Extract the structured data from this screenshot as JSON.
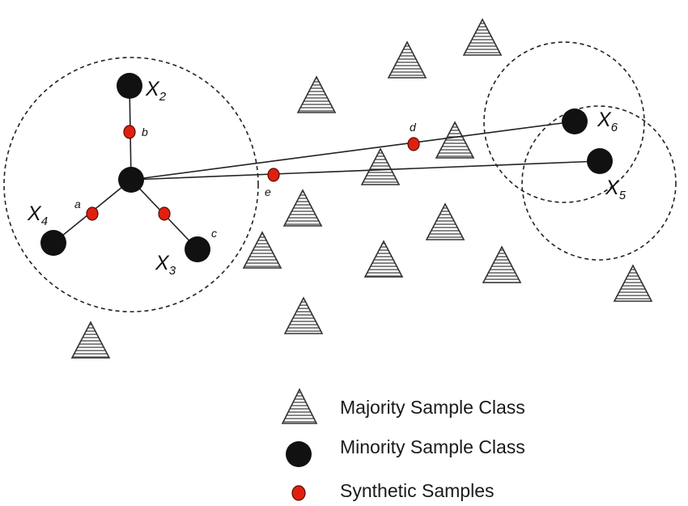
{
  "colors": {
    "minority": "#111111",
    "synthetic": "#e0200f",
    "synthetic_stroke": "#5a0a05",
    "triangle_stroke": "#333333",
    "triangle_hatch": "#555555",
    "line": "#222222",
    "circle_dash": "#222222"
  },
  "icons": {
    "majority": "hatched-triangle",
    "minority": "black-filled-circle",
    "synthetic": "red-filled-circle"
  },
  "minority_labels": [
    {
      "id": "x2",
      "base": "X",
      "sub": "2"
    },
    {
      "id": "x3",
      "base": "X",
      "sub": "3"
    },
    {
      "id": "x4",
      "base": "X",
      "sub": "4"
    },
    {
      "id": "x5",
      "base": "X",
      "sub": "5"
    },
    {
      "id": "x6",
      "base": "X",
      "sub": "6"
    }
  ],
  "synthetic_labels": [
    "a",
    "b",
    "c",
    "d",
    "e"
  ],
  "legend": [
    {
      "icon": "majority",
      "label": "Majority Sample Class"
    },
    {
      "icon": "minority",
      "label": "Minority Sample Class"
    },
    {
      "icon": "synthetic",
      "label": "Synthetic Samples"
    }
  ]
}
